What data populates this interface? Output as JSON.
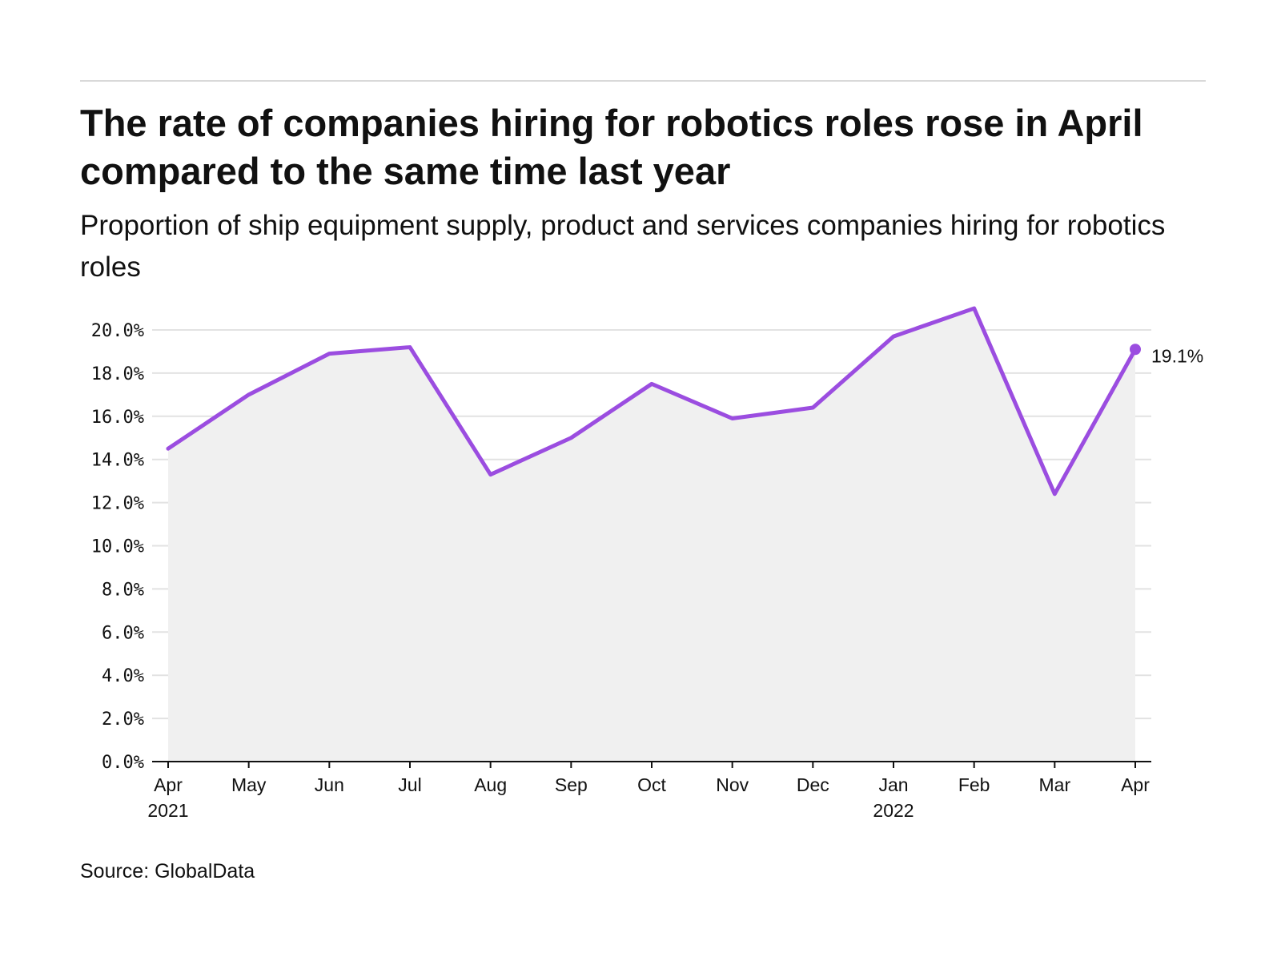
{
  "title": "The rate of companies hiring for robotics roles rose in April compared to the same time last year",
  "subtitle": "Proportion of ship equipment supply, product and services companies hiring for robotics roles",
  "source": "Source: GlobalData",
  "colors": {
    "line": "#9b4de0",
    "area": "#f0f0f0",
    "grid": "#e2e2e2",
    "axis": "#111111"
  },
  "chart_data": {
    "type": "line",
    "title": "The rate of companies hiring for robotics roles rose in April compared to the same time last year",
    "subtitle": "Proportion of ship equipment supply, product and services companies hiring for robotics roles",
    "categories": [
      "Apr",
      "May",
      "Jun",
      "Jul",
      "Aug",
      "Sep",
      "Oct",
      "Nov",
      "Dec",
      "Jan",
      "Feb",
      "Mar",
      "Apr"
    ],
    "category_sublabels": [
      "2021",
      "",
      "",
      "",
      "",
      "",
      "",
      "",
      "",
      "2022",
      "",
      "",
      ""
    ],
    "series": [
      {
        "values": [
          14.5,
          17.0,
          18.9,
          19.2,
          13.3,
          15.0,
          17.5,
          15.9,
          16.4,
          19.7,
          21.0,
          12.4,
          19.1
        ]
      }
    ],
    "ylim": [
      0,
      20
    ],
    "yticks": [
      0,
      2,
      4,
      6,
      8,
      10,
      12,
      14,
      16,
      18,
      20
    ],
    "ytick_labels": [
      "0.0%",
      "2.0%",
      "4.0%",
      "6.0%",
      "8.0%",
      "10.0%",
      "12.0%",
      "14.0%",
      "16.0%",
      "18.0%",
      "20.0%"
    ],
    "last_point_label": "19.1%",
    "xlabel": "",
    "ylabel": "",
    "grid": true,
    "area_fill": true,
    "legend": "none"
  }
}
